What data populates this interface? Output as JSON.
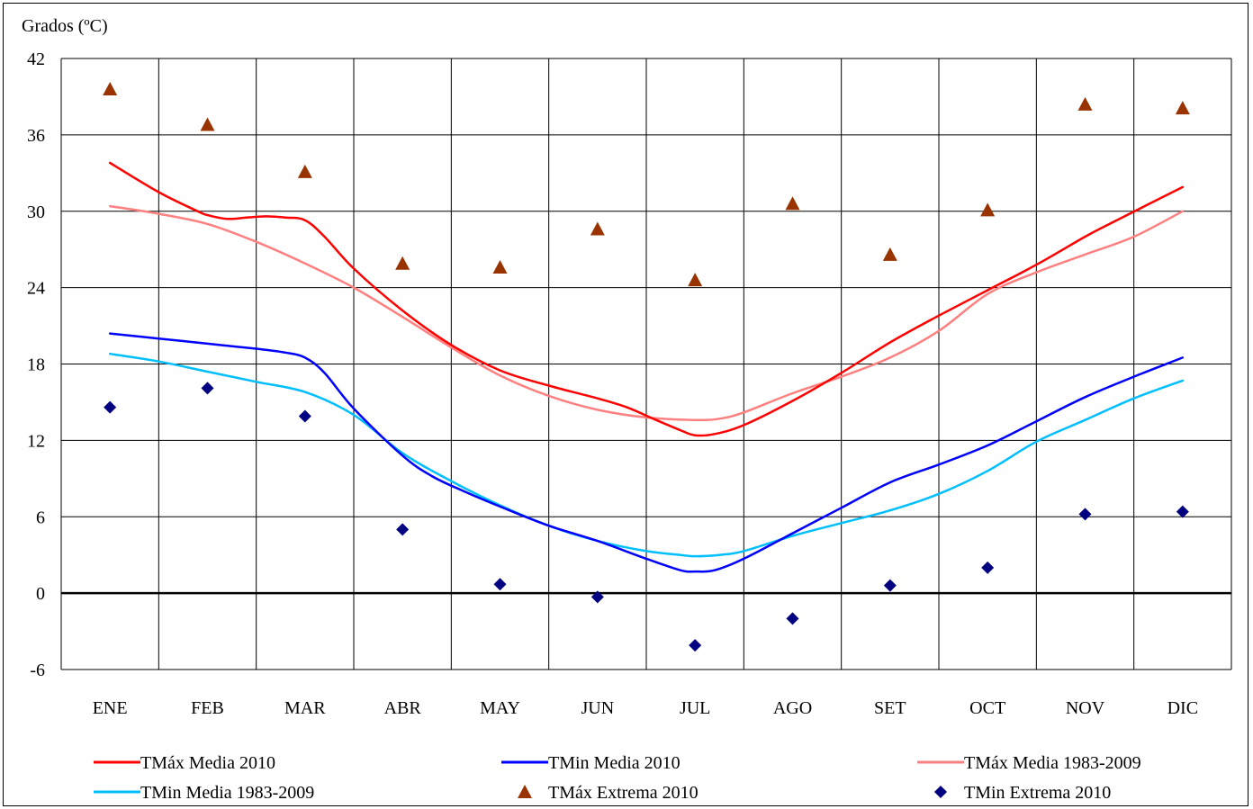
{
  "chart_data": {
    "type": "line",
    "ylabel": "Grados (ºC)",
    "categories": [
      "ENE",
      "FEB",
      "MAR",
      "ABR",
      "MAY",
      "JUN",
      "JUL",
      "AGO",
      "SET",
      "OCT",
      "NOV",
      "DIC"
    ],
    "ylim": [
      -6,
      42
    ],
    "yticks": [
      -6,
      0,
      6,
      12,
      18,
      24,
      30,
      36,
      42
    ],
    "grid": true,
    "legend_position": "bottom",
    "series": [
      {
        "name": "TMáx Media 2010",
        "kind": "line",
        "color": "#ff0000",
        "x": [
          0,
          0.5,
          0.9,
          1.0,
          1.2,
          1.4,
          1.6,
          1.8,
          2.0,
          2.2,
          2.5,
          3.0,
          3.5,
          4.0,
          4.5,
          5.0,
          5.3,
          5.6,
          5.85,
          6.0,
          6.2,
          6.5,
          7.0,
          7.5,
          8.0,
          8.5,
          9.0,
          9.5,
          10.0,
          10.3,
          11.0
        ],
        "values": [
          33.8,
          31.5,
          30.0,
          29.7,
          29.4,
          29.5,
          29.6,
          29.5,
          29.3,
          28.0,
          25.5,
          22.2,
          19.5,
          17.5,
          16.3,
          15.3,
          14.6,
          13.6,
          12.8,
          12.4,
          12.5,
          13.2,
          15.1,
          17.3,
          19.7,
          21.8,
          23.8,
          25.8,
          28.0,
          29.2,
          31.9
        ]
      },
      {
        "name": "TMin Media 2010",
        "kind": "line",
        "color": "#0000ff",
        "x": [
          0,
          0.5,
          1.0,
          1.5,
          1.8,
          2.0,
          2.2,
          2.5,
          3.0,
          3.3,
          3.6,
          4.0,
          4.5,
          5.0,
          5.5,
          5.85,
          6.0,
          6.2,
          6.5,
          7.0,
          7.5,
          8.0,
          8.5,
          9.0,
          9.5,
          10.0,
          10.5,
          11.0
        ],
        "values": [
          20.4,
          20.0,
          19.6,
          19.2,
          18.9,
          18.5,
          17.3,
          14.5,
          10.8,
          9.2,
          8.1,
          6.8,
          5.3,
          4.1,
          2.7,
          1.8,
          1.7,
          1.8,
          2.7,
          4.7,
          6.7,
          8.7,
          10.1,
          11.6,
          13.5,
          15.4,
          17.0,
          18.5
        ]
      },
      {
        "name": "TMáx Media 1983-2009",
        "kind": "line",
        "color": "#ff8080",
        "x": [
          0,
          0.5,
          1.0,
          1.5,
          2.0,
          2.5,
          3.0,
          3.5,
          4.0,
          4.5,
          5.0,
          5.5,
          6.0,
          6.25,
          6.5,
          7.0,
          7.5,
          8.0,
          8.5,
          9.0,
          9.5,
          10.0,
          10.5,
          11.0
        ],
        "values": [
          30.4,
          29.8,
          29.0,
          27.6,
          25.9,
          24.0,
          21.7,
          19.3,
          17.1,
          15.5,
          14.4,
          13.8,
          13.6,
          13.7,
          14.2,
          15.7,
          17.0,
          18.5,
          20.6,
          23.5,
          25.2,
          26.6,
          28.0,
          30.0
        ]
      },
      {
        "name": "TMin Media 1983-2009",
        "kind": "line",
        "color": "#00bfff",
        "x": [
          0,
          0.5,
          1.0,
          1.5,
          2.0,
          2.5,
          3.0,
          3.5,
          4.0,
          4.5,
          5.0,
          5.5,
          5.85,
          6.0,
          6.25,
          6.5,
          7.0,
          7.5,
          8.0,
          8.5,
          9.0,
          9.5,
          10.0,
          10.5,
          11.0
        ],
        "values": [
          18.8,
          18.2,
          17.4,
          16.6,
          15.8,
          14.0,
          11.0,
          8.8,
          6.9,
          5.3,
          4.1,
          3.3,
          3.0,
          2.9,
          3.0,
          3.3,
          4.5,
          5.5,
          6.5,
          7.8,
          9.6,
          11.9,
          13.6,
          15.3,
          16.7
        ]
      },
      {
        "name": "TMáx Extrema 2010",
        "kind": "marker",
        "marker": "triangle",
        "color": "#993300",
        "values": [
          39.6,
          36.8,
          33.1,
          25.9,
          25.6,
          28.6,
          24.6,
          30.6,
          26.6,
          30.1,
          38.4,
          38.1
        ]
      },
      {
        "name": "TMin Extrema 2010",
        "kind": "marker",
        "marker": "diamond",
        "color": "#000080",
        "values": [
          14.6,
          16.1,
          13.9,
          5.0,
          0.7,
          -0.3,
          -4.1,
          -2.0,
          0.6,
          2.0,
          6.2,
          6.4
        ]
      }
    ]
  }
}
